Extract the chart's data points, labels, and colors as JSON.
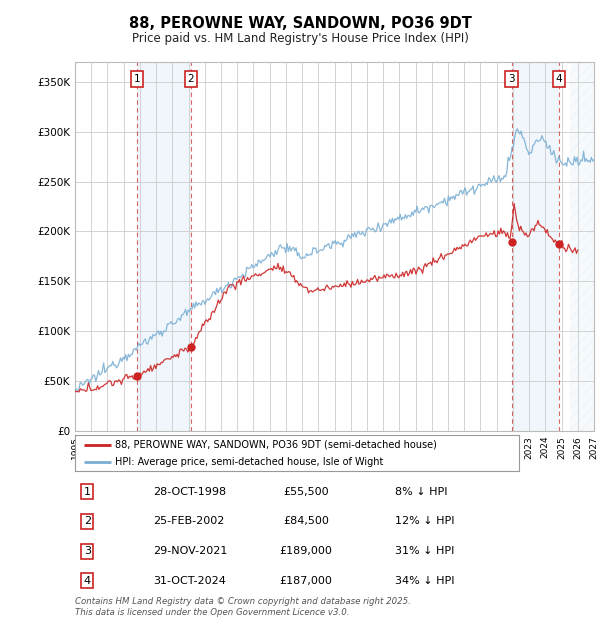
{
  "title": "88, PEROWNE WAY, SANDOWN, PO36 9DT",
  "subtitle": "Price paid vs. HM Land Registry's House Price Index (HPI)",
  "hpi_color": "#7aafd4",
  "price_color": "#cc2222",
  "background_color": "#ffffff",
  "plot_bg_color": "#ffffff",
  "ylim": [
    0,
    370000
  ],
  "yticks": [
    0,
    50000,
    100000,
    150000,
    200000,
    250000,
    300000,
    350000
  ],
  "ytick_labels": [
    "£0",
    "£50K",
    "£100K",
    "£150K",
    "£200K",
    "£250K",
    "£300K",
    "£350K"
  ],
  "xlim_start": 1995.0,
  "xlim_end": 2027.0,
  "sale_years": [
    1998.83,
    2002.15,
    2021.92,
    2024.83
  ],
  "sale_prices": [
    55500,
    84500,
    189000,
    187000
  ],
  "sale_labels": [
    "1",
    "2",
    "3",
    "4"
  ],
  "sale_dates": [
    "28-OCT-1998",
    "25-FEB-2002",
    "29-NOV-2021",
    "31-OCT-2024"
  ],
  "sale_amounts": [
    "£55,500",
    "£84,500",
    "£189,000",
    "£187,000"
  ],
  "sale_hpi_pct": [
    "8% ↓ HPI",
    "12% ↓ HPI",
    "31% ↓ HPI",
    "34% ↓ HPI"
  ],
  "legend_price_label": "88, PEROWNE WAY, SANDOWN, PO36 9DT (semi-detached house)",
  "legend_hpi_label": "HPI: Average price, semi-detached house, Isle of Wight",
  "footer": "Contains HM Land Registry data © Crown copyright and database right 2025.\nThis data is licensed under the Open Government Licence v3.0."
}
